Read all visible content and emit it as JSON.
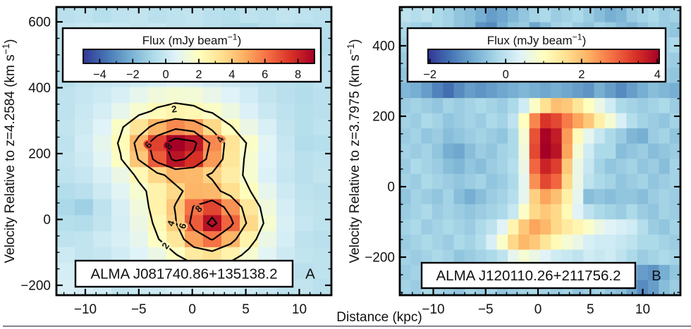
{
  "figure": {
    "xlabel": "Distance (kpc)",
    "background_color": "#ffffff",
    "bottom_rule_color": "#84848c"
  },
  "colormap": {
    "name": "blue-yellow-red (RdYlBu reversed)",
    "stops": [
      "#313695",
      "#4575b4",
      "#74add1",
      "#abd9e9",
      "#e0f3f8",
      "#ffffbf",
      "#fee090",
      "#fdae61",
      "#f46d43",
      "#d73027",
      "#a50026"
    ]
  },
  "chart_data": [
    {
      "type": "heatmap",
      "panel_letter": "A",
      "source_label": "ALMA J081740.86+135138.2",
      "ylabel": "Velocity Relative to z=4.2584 (km s⁻¹)",
      "xlabel": "Distance (kpc)",
      "xlim": [
        -12.7,
        13.0
      ],
      "ylim": [
        -230,
        645
      ],
      "xticks": [
        -10,
        -5,
        0,
        5,
        10
      ],
      "yticks": [
        -200,
        0,
        200,
        400,
        600
      ],
      "x_minor_step": 1,
      "y_minor_step": 50,
      "colorbar": {
        "title": "Flux (mJy beam⁻¹)",
        "ticks": [
          -4,
          -2,
          0,
          2,
          4,
          6,
          8
        ],
        "minor_step": 1,
        "vmin": -5,
        "vmax": 9
      },
      "contour_levels": [
        2,
        4,
        6,
        8
      ],
      "contour_labels": [
        {
          "level": 2,
          "x": -1.7,
          "v": 335,
          "rot": -8
        },
        {
          "level": 4,
          "x": 2.6,
          "v": 243,
          "rot": -62
        },
        {
          "level": 6,
          "x": -4.1,
          "v": 226,
          "rot": -50
        },
        {
          "level": 8,
          "x": -2.2,
          "v": 222,
          "rot": -48
        },
        {
          "level": 8,
          "x": 0.6,
          "v": 32,
          "rot": -45
        },
        {
          "level": 6,
          "x": -0.9,
          "v": -20,
          "rot": -72
        },
        {
          "level": 4,
          "x": -2.0,
          "v": -12,
          "rot": -70
        },
        {
          "level": 2,
          "x": -2.5,
          "v": -80,
          "rot": -55
        }
      ],
      "x_centers": [
        -11.8,
        -10.1,
        -8.4,
        -6.7,
        -5.0,
        -3.3,
        -1.6,
        0.2,
        1.9,
        3.6,
        5.3,
        7.0,
        8.7,
        10.4,
        12.1
      ],
      "v_centers": [
        621,
        572,
        524,
        475,
        426,
        378,
        329,
        281,
        232,
        183,
        135,
        86,
        38,
        -11,
        -59,
        -108,
        -157,
        -205
      ],
      "flux_grid": [
        [
          -0.4,
          -0.3,
          -0.5,
          -0.3,
          -0.2,
          -0.4,
          -0.3,
          -0.2,
          -0.4,
          -0.5,
          -0.3,
          -0.4,
          -0.2,
          -0.3,
          -0.4
        ],
        [
          -0.2,
          -0.1,
          0.0,
          -0.1,
          -0.2,
          -0.1,
          -0.3,
          -0.2,
          -0.4,
          -0.6,
          -0.8,
          -0.5,
          -0.4,
          -0.6,
          -0.5
        ],
        [
          -0.3,
          -0.4,
          -0.5,
          -0.3,
          -0.2,
          -0.3,
          -0.5,
          -0.4,
          -0.3,
          -0.4,
          -0.5,
          -0.4,
          -0.3,
          -0.4,
          -0.6
        ],
        [
          -0.4,
          -0.3,
          -0.2,
          -0.3,
          -0.4,
          -0.2,
          -0.1,
          -0.3,
          -0.4,
          -0.3,
          -0.2,
          -0.4,
          -0.5,
          -0.3,
          -0.4
        ],
        [
          -0.5,
          -0.2,
          -0.1,
          0.0,
          0.2,
          0.4,
          0.6,
          0.5,
          0.3,
          0.1,
          -0.1,
          -0.3,
          -0.4,
          -0.5,
          -0.3
        ],
        [
          -0.3,
          -0.1,
          0.1,
          0.4,
          0.9,
          1.3,
          1.5,
          1.4,
          1.0,
          0.6,
          0.2,
          -0.2,
          -0.4,
          -0.6,
          -0.4
        ],
        [
          -0.3,
          0.0,
          0.3,
          0.9,
          1.6,
          2.2,
          2.5,
          2.3,
          1.8,
          1.2,
          0.5,
          0.0,
          -0.3,
          -0.5,
          -0.4
        ],
        [
          -0.2,
          0.1,
          0.6,
          1.8,
          3.2,
          4.6,
          5.6,
          5.1,
          3.6,
          2.1,
          1.1,
          0.4,
          -0.2,
          -0.5,
          -0.3
        ],
        [
          -0.3,
          0.2,
          0.9,
          2.2,
          4.6,
          7.2,
          9.0,
          8.4,
          5.6,
          3.2,
          1.8,
          0.7,
          -0.1,
          -0.6,
          -0.5
        ],
        [
          -0.2,
          0.1,
          0.7,
          1.9,
          4.1,
          6.6,
          8.4,
          7.6,
          5.2,
          3.1,
          1.6,
          0.6,
          0.0,
          -0.4,
          -0.3
        ],
        [
          -0.3,
          -0.1,
          0.4,
          1.1,
          2.3,
          3.6,
          4.6,
          4.5,
          3.8,
          2.8,
          1.6,
          0.5,
          -0.1,
          -0.4,
          -0.2
        ],
        [
          -0.6,
          -0.4,
          0.1,
          0.7,
          1.6,
          2.6,
          3.6,
          4.6,
          4.5,
          3.4,
          2.1,
          0.9,
          0.1,
          -0.3,
          -0.4
        ],
        [
          -0.8,
          -1.1,
          -0.3,
          0.4,
          1.3,
          2.6,
          4.1,
          6.1,
          7.1,
          5.4,
          3.1,
          1.3,
          0.3,
          -0.2,
          -0.3
        ],
        [
          -0.5,
          -0.6,
          -0.2,
          0.3,
          1.1,
          2.3,
          3.9,
          6.6,
          8.5,
          6.4,
          3.6,
          1.6,
          0.4,
          -0.1,
          -0.3
        ],
        [
          -0.3,
          -0.2,
          0.1,
          0.4,
          0.9,
          1.9,
          3.1,
          5.1,
          6.1,
          4.6,
          2.6,
          1.1,
          0.3,
          -0.3,
          -0.4
        ],
        [
          0.1,
          -0.2,
          -0.1,
          0.2,
          0.6,
          1.1,
          1.9,
          2.9,
          3.3,
          2.6,
          1.6,
          0.7,
          0.1,
          -0.2,
          -0.3
        ],
        [
          0.3,
          0.4,
          -0.1,
          0.1,
          0.3,
          0.6,
          0.9,
          1.3,
          1.4,
          1.1,
          0.7,
          0.3,
          -0.2,
          -0.4,
          -0.3
        ],
        [
          0.4,
          0.3,
          0.2,
          -0.2,
          0.0,
          0.1,
          0.3,
          0.4,
          0.4,
          0.3,
          0.1,
          -0.1,
          -0.3,
          -0.2,
          -0.4
        ]
      ]
    },
    {
      "type": "heatmap",
      "panel_letter": "B",
      "source_label": "ALMA J120110.26+211756.2",
      "ylabel": "Velocity Relative to z=3.7975 (km s⁻¹)",
      "xlabel": "Distance (kpc)",
      "xlim": [
        -13.2,
        13.6
      ],
      "ylim": [
        -308,
        510
      ],
      "xticks": [
        -10,
        -5,
        0,
        5,
        10
      ],
      "yticks": [
        -200,
        0,
        200,
        400
      ],
      "x_minor_step": 1,
      "y_minor_step": 50,
      "colorbar": {
        "title": "Flux (mJy beam⁻¹)",
        "ticks": [
          -2,
          0,
          2,
          4
        ],
        "minor_step": 0.5,
        "vmin": -2.05,
        "vmax": 4.05
      },
      "contour_levels": [],
      "contour_labels": [],
      "x_centers": [
        -12.7,
        -11.7,
        -10.6,
        -9.6,
        -8.6,
        -7.5,
        -6.5,
        -5.5,
        -4.4,
        -3.4,
        -2.4,
        -1.3,
        -0.3,
        0.7,
        1.8,
        2.8,
        3.8,
        4.8,
        5.9,
        6.9,
        7.9,
        9.0,
        10.0,
        11.0,
        12.1,
        13.1
      ],
      "v_centers": [
        488,
        445,
        402,
        359,
        316,
        273,
        230,
        187,
        144,
        101,
        58,
        15,
        -28,
        -71,
        -114,
        -157,
        -200,
        -243,
        -286
      ],
      "flux_grid": [
        [
          0.0,
          -0.1,
          0.0,
          -0.2,
          -0.3,
          -0.5,
          -0.6,
          -0.8,
          -1.0,
          -0.9,
          -0.7,
          -0.5,
          -0.3,
          -0.2,
          -0.4,
          -0.3,
          -0.2,
          -0.4,
          -0.6,
          -0.8,
          -0.7,
          -0.4,
          -0.3,
          -0.2,
          -0.4,
          -0.3
        ],
        [
          -0.2,
          -0.3,
          -0.4,
          -0.2,
          -0.3,
          -0.5,
          -0.6,
          -1.1,
          -1.2,
          -0.8,
          -0.5,
          -0.4,
          -0.9,
          -0.6,
          -0.3,
          -0.2,
          -0.4,
          -0.5,
          -0.3,
          -0.4,
          -0.6,
          -0.7,
          -0.5,
          -0.3,
          -0.4,
          -0.5
        ],
        [
          -0.3,
          -0.2,
          -0.1,
          -0.3,
          -0.4,
          -0.3,
          -0.2,
          -0.4,
          -0.5,
          -0.3,
          -0.2,
          -0.3,
          -0.4,
          -0.3,
          -0.2,
          -0.3,
          -0.5,
          -0.4,
          -0.2,
          -0.3,
          -0.4,
          -0.3,
          -0.5,
          -0.4,
          -0.3,
          -0.2
        ],
        [
          -0.4,
          -0.3,
          -0.2,
          -0.4,
          -0.5,
          -0.4,
          -0.3,
          -0.2,
          -0.3,
          -0.4,
          -0.3,
          -0.2,
          -0.3,
          -0.2,
          -0.1,
          -0.3,
          -0.4,
          -0.3,
          -0.2,
          -0.4,
          -0.5,
          -0.3,
          -0.2,
          -0.4,
          -0.3,
          -0.4
        ],
        [
          -0.5,
          -0.6,
          -0.8,
          -0.9,
          -1.0,
          -1.2,
          -1.1,
          -1.0,
          -0.9,
          -0.8,
          -0.7,
          -0.6,
          -0.7,
          -0.8,
          -0.6,
          -0.5,
          -0.6,
          -0.7,
          -0.5,
          -0.6,
          -0.8,
          -0.7,
          -0.6,
          -0.5,
          -0.4,
          -0.5
        ],
        [
          -0.7,
          -0.8,
          -1.0,
          -1.3,
          -1.5,
          -1.2,
          -1.0,
          -1.1,
          -1.0,
          -0.9,
          -0.8,
          -0.7,
          -0.8,
          -0.9,
          -0.8,
          -0.9,
          -1.0,
          -1.1,
          -0.8,
          -1.0,
          -1.2,
          -1.0,
          -0.8,
          -0.6,
          -0.7,
          -0.8
        ],
        [
          -0.4,
          -0.3,
          -0.4,
          -0.5,
          -0.3,
          -0.4,
          -0.3,
          -0.2,
          -0.3,
          -0.4,
          -0.2,
          0.2,
          0.9,
          1.6,
          2.0,
          1.9,
          1.5,
          1.0,
          0.6,
          0.2,
          -0.2,
          -0.3,
          -0.4,
          -0.3,
          -0.2,
          -0.4
        ],
        [
          -0.3,
          -0.4,
          -0.2,
          -0.3,
          -0.5,
          -0.4,
          -0.3,
          -0.4,
          -0.2,
          -0.3,
          0.0,
          1.0,
          2.6,
          3.4,
          3.2,
          2.7,
          2.3,
          1.9,
          1.3,
          0.8,
          0.3,
          -0.1,
          -0.3,
          -0.4,
          -0.5,
          -0.3
        ],
        [
          -0.4,
          -0.3,
          -0.5,
          -0.4,
          -0.6,
          -0.5,
          -0.4,
          -0.3,
          -0.4,
          -0.5,
          -0.2,
          0.8,
          3.1,
          4.0,
          3.7,
          2.4,
          1.1,
          0.5,
          0.1,
          -0.2,
          -0.4,
          -0.7,
          -0.8,
          -0.4,
          -0.3,
          -0.5
        ],
        [
          -0.3,
          -0.4,
          -0.3,
          -0.5,
          -0.8,
          -0.9,
          -0.6,
          -0.4,
          -0.5,
          -0.3,
          -0.2,
          0.7,
          3.2,
          4.3,
          3.8,
          2.3,
          0.8,
          0.2,
          -0.2,
          -0.2,
          -0.6,
          -0.5,
          -0.4,
          -0.6,
          -0.5,
          -0.4
        ],
        [
          -0.4,
          -0.2,
          -0.3,
          -0.4,
          -0.6,
          -0.7,
          -0.5,
          -0.6,
          -0.4,
          -0.3,
          -0.1,
          0.6,
          2.9,
          3.6,
          3.3,
          1.9,
          0.6,
          0.1,
          -0.3,
          -0.5,
          -0.4,
          -0.3,
          -0.5,
          -0.4,
          -0.6,
          -0.3
        ],
        [
          -0.3,
          -0.4,
          -0.2,
          -0.3,
          -0.4,
          -0.5,
          -0.4,
          -0.3,
          -0.5,
          -0.4,
          -0.2,
          0.5,
          2.5,
          3.2,
          2.9,
          1.7,
          0.6,
          0.0,
          -0.2,
          -0.3,
          -0.5,
          -0.4,
          -0.3,
          -0.5,
          -0.4,
          -0.3
        ],
        [
          -0.5,
          -0.3,
          -0.4,
          -0.5,
          -0.3,
          -0.6,
          -0.8,
          -0.6,
          -0.4,
          -0.3,
          -0.1,
          0.5,
          1.8,
          2.3,
          2.0,
          1.3,
          0.5,
          -0.6,
          -0.5,
          -0.6,
          -0.5,
          -0.5,
          -0.6,
          -0.4,
          -0.3,
          -0.4
        ],
        [
          -0.4,
          -0.3,
          -0.2,
          -0.4,
          -0.3,
          -0.4,
          -0.5,
          -0.4,
          -0.3,
          -0.2,
          0.1,
          0.9,
          1.7,
          1.9,
          1.7,
          1.1,
          0.4,
          0.0,
          -0.2,
          -0.3,
          -0.4,
          -0.2,
          -0.4,
          -0.5,
          -0.3,
          -0.4
        ],
        [
          -0.3,
          -0.2,
          -0.4,
          -0.3,
          -0.2,
          -0.3,
          -0.4,
          -0.2,
          0.0,
          0.4,
          1.2,
          1.9,
          2.3,
          2.1,
          1.7,
          1.4,
          1.2,
          0.9,
          0.6,
          0.4,
          0.3,
          0.2,
          -0.1,
          -0.4,
          -0.5,
          -0.3
        ],
        [
          -0.4,
          -0.3,
          -0.2,
          -0.3,
          -0.4,
          -0.2,
          -0.3,
          -0.1,
          0.3,
          0.9,
          1.7,
          2.1,
          1.9,
          1.5,
          1.1,
          0.8,
          0.6,
          0.3,
          0.2,
          0.2,
          0.1,
          0.0,
          -0.2,
          -0.2,
          -0.3,
          -0.4
        ],
        [
          -0.3,
          -0.4,
          -0.3,
          -0.2,
          -0.3,
          -0.5,
          -0.4,
          -0.3,
          -0.2,
          0.0,
          0.5,
          0.8,
          0.6,
          0.4,
          0.2,
          0.1,
          0.0,
          0.2,
          0.1,
          0.2,
          0.0,
          -0.2,
          -0.4,
          -0.3,
          -0.2,
          -0.3
        ],
        [
          -0.4,
          -0.3,
          -0.5,
          -0.4,
          -0.3,
          -0.4,
          -0.2,
          -0.3,
          -0.4,
          -0.3,
          -0.2,
          0.1,
          0.2,
          0.0,
          -0.2,
          -0.3,
          -0.4,
          -0.3,
          -0.2,
          -0.4,
          -0.5,
          -0.7,
          -1.0,
          -1.1,
          -0.8,
          -0.5
        ],
        [
          -0.3,
          -0.4,
          -0.2,
          -0.3,
          -0.4,
          -0.5,
          -0.3,
          -0.4,
          -0.3,
          -0.5,
          -0.4,
          -0.3,
          -0.2,
          -0.3,
          -0.4,
          -0.3,
          -0.5,
          -0.4,
          -0.3,
          -0.5,
          -0.6,
          -0.9,
          -1.2,
          -1.0,
          -0.6,
          -0.4
        ]
      ]
    }
  ]
}
